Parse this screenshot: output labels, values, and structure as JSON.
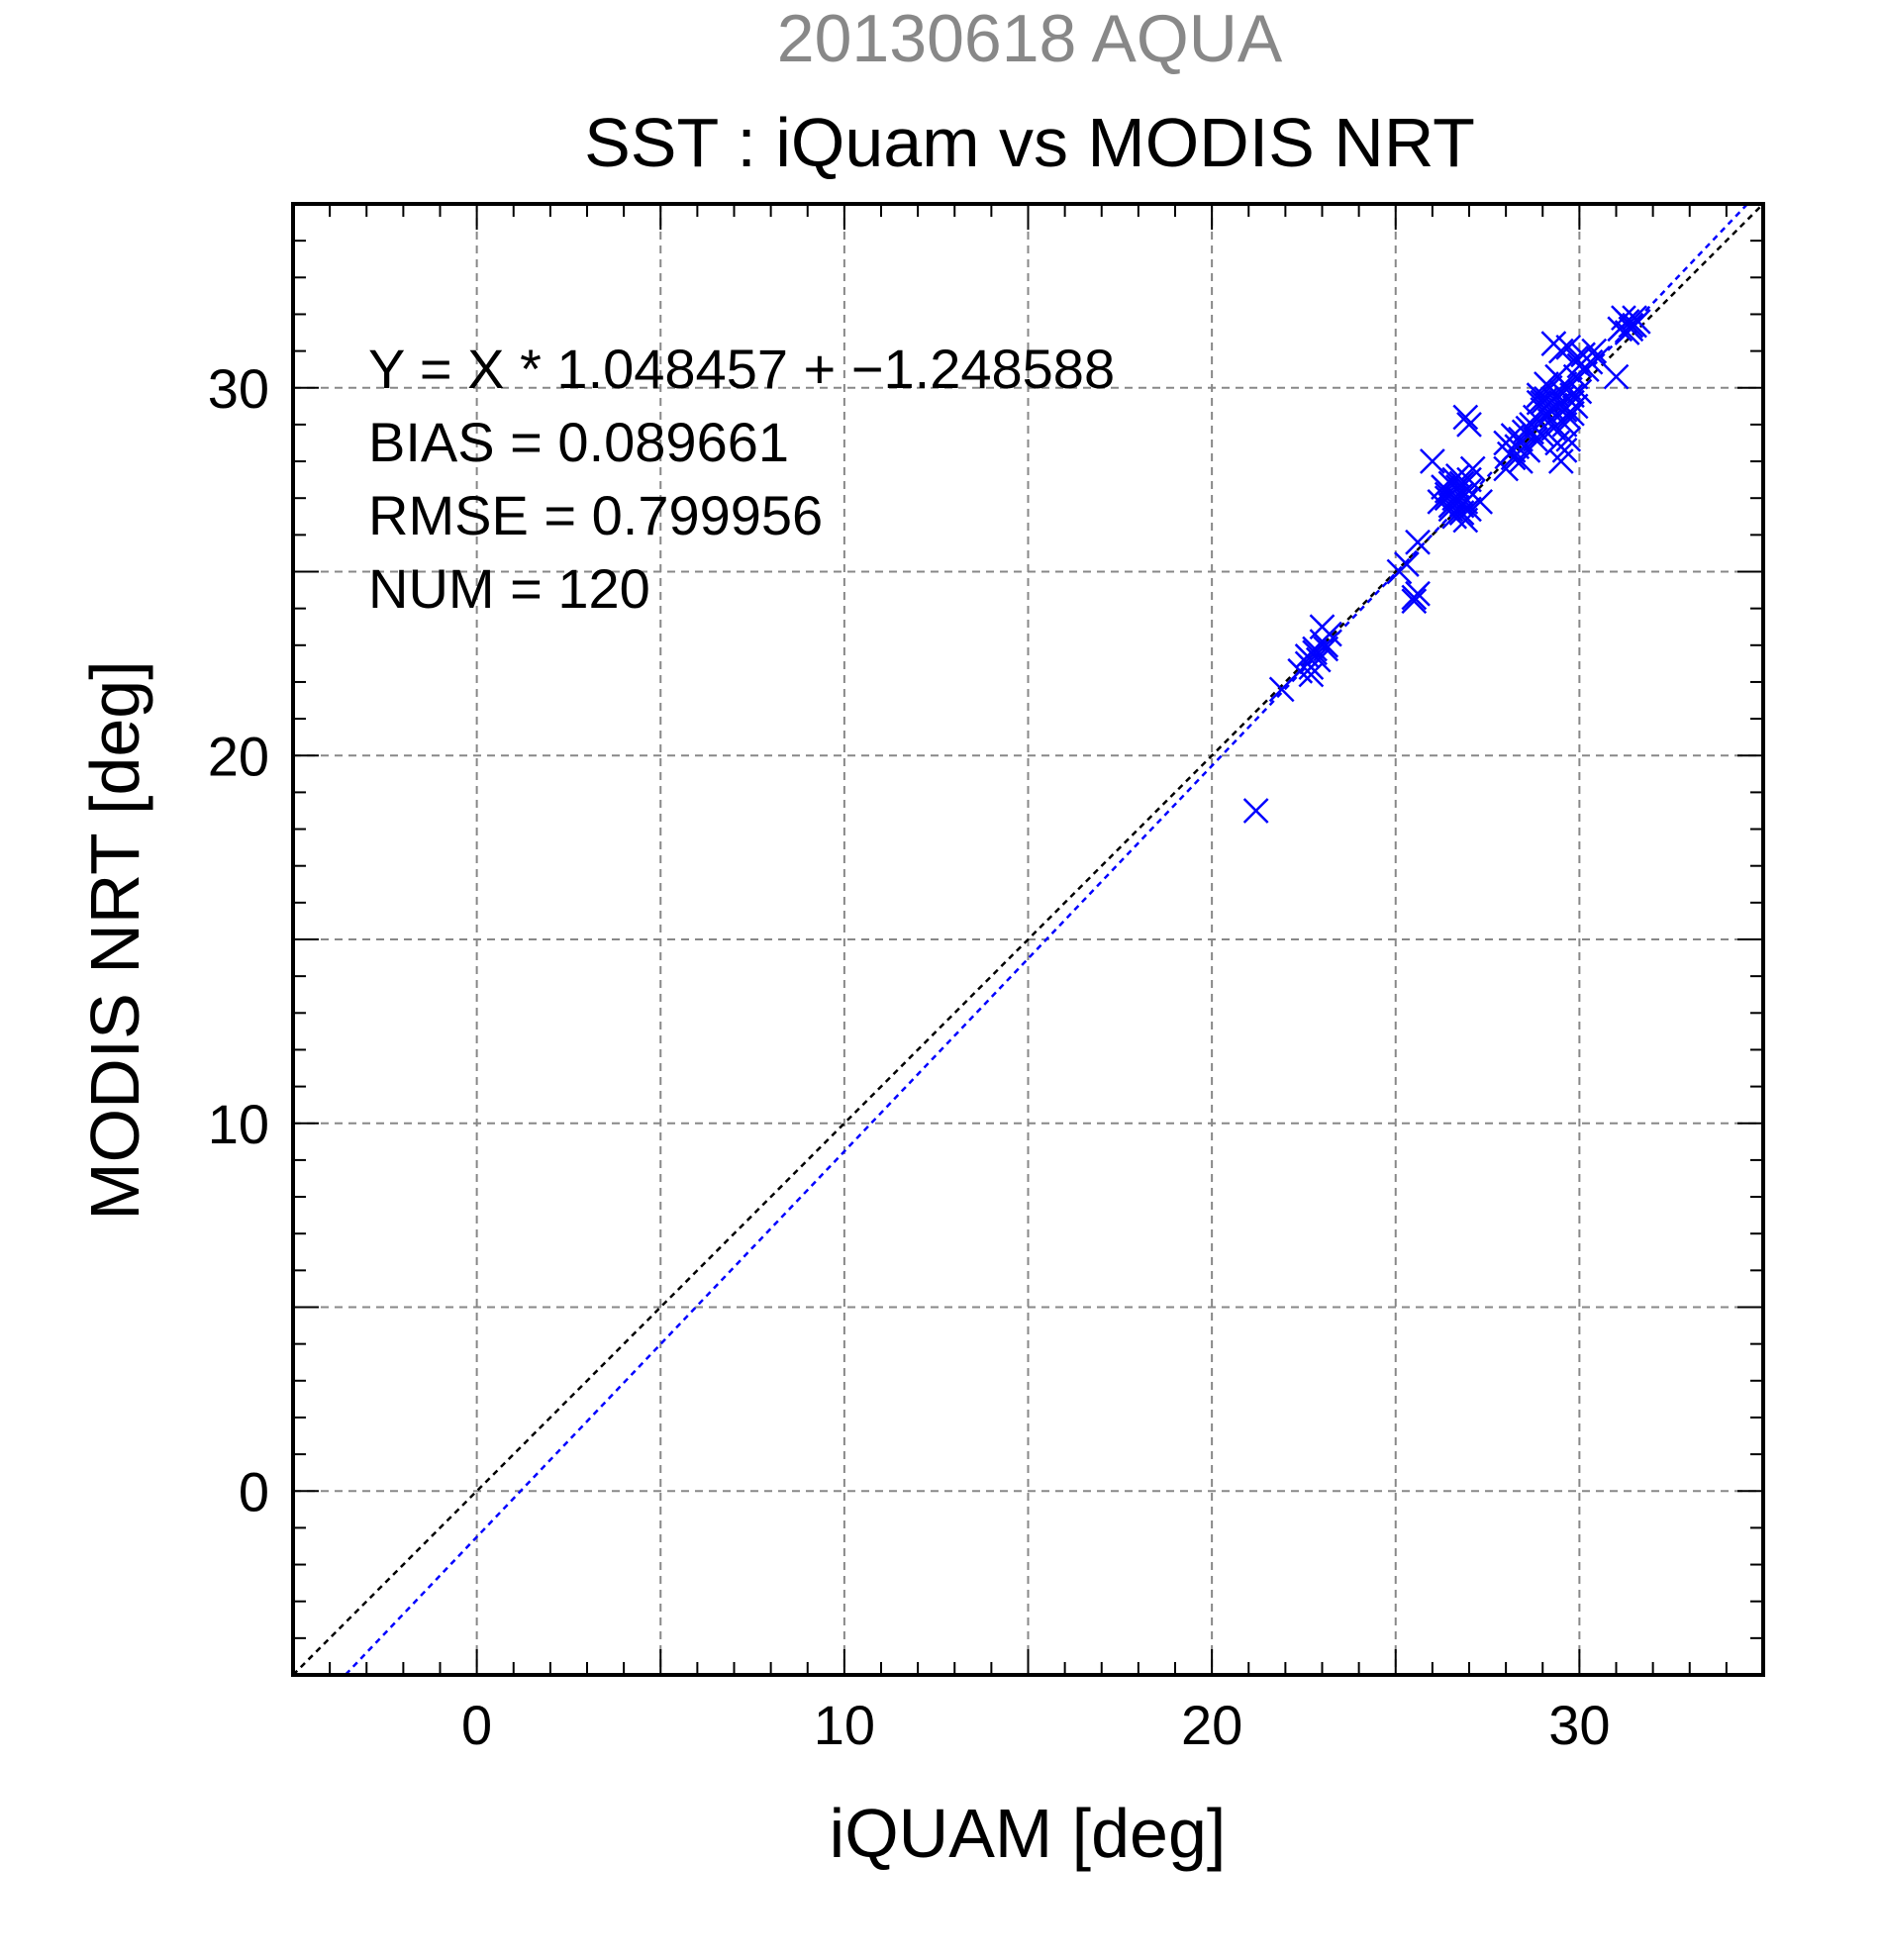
{
  "chart_data": {
    "type": "scatter",
    "subtitle": "20130618 AQUA",
    "title": "SST : iQuam vs MODIS NRT",
    "xlabel": "iQUAM [deg]",
    "ylabel": "MODIS NRT [deg]",
    "xlim": [
      -5,
      35
    ],
    "ylim": [
      -5,
      35
    ],
    "xticks": [
      0,
      10,
      20,
      30
    ],
    "yticks": [
      0,
      10,
      20,
      30
    ],
    "grid": true,
    "annotations": [
      "Y = X * 1.048457 + −1.248588",
      "BIAS = 0.089661",
      "RMSE = 0.799956",
      "NUM = 120"
    ],
    "fit": {
      "slope": 1.048457,
      "intercept": -1.248588
    },
    "colors": {
      "points": "#0000ff",
      "fit_line": "#0000ff",
      "identity_line": "#000000",
      "subtitle": "#888888",
      "grid": "#888888"
    },
    "series": [
      {
        "marker": "x",
        "points": [
          [
            21.2,
            18.5
          ],
          [
            21.9,
            21.8
          ],
          [
            22.4,
            22.3
          ],
          [
            22.6,
            22.5
          ],
          [
            22.7,
            22.2
          ],
          [
            22.8,
            22.8
          ],
          [
            22.9,
            22.6
          ],
          [
            23.0,
            23.1
          ],
          [
            23.1,
            22.9
          ],
          [
            22.7,
            22.4
          ],
          [
            23.2,
            23.3
          ],
          [
            23.0,
            23.5
          ],
          [
            22.8,
            22.9
          ],
          [
            23.1,
            23.0
          ],
          [
            22.6,
            22.7
          ],
          [
            25.3,
            25.2
          ],
          [
            25.6,
            25.8
          ],
          [
            25.5,
            24.3
          ],
          [
            25.6,
            24.4
          ],
          [
            25.5,
            24.2
          ],
          [
            26.0,
            28.0
          ],
          [
            26.3,
            27.3
          ],
          [
            26.4,
            27.1
          ],
          [
            26.5,
            26.8
          ],
          [
            26.6,
            27.5
          ],
          [
            26.7,
            27.0
          ],
          [
            26.8,
            26.6
          ],
          [
            26.5,
            27.4
          ],
          [
            26.9,
            26.9
          ],
          [
            27.0,
            27.2
          ],
          [
            26.6,
            26.5
          ],
          [
            26.7,
            27.3
          ],
          [
            26.8,
            27.1
          ],
          [
            27.0,
            26.7
          ],
          [
            27.1,
            27.8
          ],
          [
            26.9,
            29.2
          ],
          [
            27.0,
            29.0
          ],
          [
            27.3,
            26.9
          ],
          [
            26.4,
            27.0
          ],
          [
            26.6,
            26.9
          ],
          [
            26.7,
            27.6
          ],
          [
            26.8,
            27.4
          ],
          [
            26.5,
            26.7
          ],
          [
            27.0,
            27.5
          ],
          [
            26.9,
            26.4
          ],
          [
            28.0,
            28.5
          ],
          [
            28.1,
            28.2
          ],
          [
            28.2,
            28.7
          ],
          [
            28.3,
            28.4
          ],
          [
            28.4,
            28.0
          ],
          [
            28.5,
            28.8
          ],
          [
            28.6,
            28.3
          ],
          [
            28.7,
            29.0
          ],
          [
            28.8,
            28.6
          ],
          [
            28.9,
            29.8
          ],
          [
            29.0,
            29.6
          ],
          [
            29.1,
            29.3
          ],
          [
            29.2,
            30.0
          ],
          [
            29.3,
            29.7
          ],
          [
            29.4,
            29.5
          ],
          [
            29.5,
            29.9
          ],
          [
            29.6,
            29.4
          ],
          [
            29.7,
            29.2
          ],
          [
            29.8,
            29.8
          ],
          [
            29.9,
            30.3
          ],
          [
            30.0,
            30.6
          ],
          [
            30.1,
            30.9
          ],
          [
            29.3,
            31.2
          ],
          [
            29.5,
            31.0
          ],
          [
            29.7,
            31.1
          ],
          [
            29.9,
            30.8
          ],
          [
            30.2,
            30.5
          ],
          [
            30.3,
            30.7
          ],
          [
            30.4,
            31.0
          ],
          [
            30.5,
            30.8
          ],
          [
            29.4,
            28.5
          ],
          [
            29.5,
            28.0
          ],
          [
            29.6,
            28.3
          ],
          [
            29.7,
            28.6
          ],
          [
            29.3,
            28.9
          ],
          [
            28.2,
            28.3
          ],
          [
            28.4,
            28.6
          ],
          [
            28.6,
            28.9
          ],
          [
            28.8,
            29.2
          ],
          [
            29.0,
            29.4
          ],
          [
            29.2,
            29.1
          ],
          [
            29.4,
            29.8
          ],
          [
            29.6,
            30.1
          ],
          [
            29.8,
            29.6
          ],
          [
            30.0,
            29.9
          ],
          [
            29.1,
            29.7
          ],
          [
            29.3,
            29.4
          ],
          [
            29.5,
            29.6
          ],
          [
            29.7,
            30.0
          ],
          [
            29.9,
            29.5
          ],
          [
            28.9,
            29.6
          ],
          [
            29.1,
            30.1
          ],
          [
            29.4,
            30.3
          ],
          [
            29.6,
            29.0
          ],
          [
            29.8,
            29.3
          ],
          [
            31.0,
            30.3
          ],
          [
            31.1,
            31.6
          ],
          [
            31.3,
            31.8
          ],
          [
            31.4,
            31.7
          ],
          [
            31.5,
            31.9
          ],
          [
            31.6,
            31.8
          ],
          [
            31.3,
            31.5
          ],
          [
            31.2,
            31.9
          ],
          [
            31.5,
            31.7
          ],
          [
            31.4,
            31.6
          ],
          [
            28.0,
            27.8
          ],
          [
            28.2,
            28.1
          ],
          [
            28.5,
            28.4
          ],
          [
            28.7,
            28.8
          ],
          [
            29.0,
            28.7
          ],
          [
            25.1,
            25.0
          ],
          [
            26.2,
            26.9
          ],
          [
            26.4,
            27.2
          ],
          [
            26.6,
            27.0
          ],
          [
            26.8,
            26.8
          ]
        ]
      }
    ]
  }
}
